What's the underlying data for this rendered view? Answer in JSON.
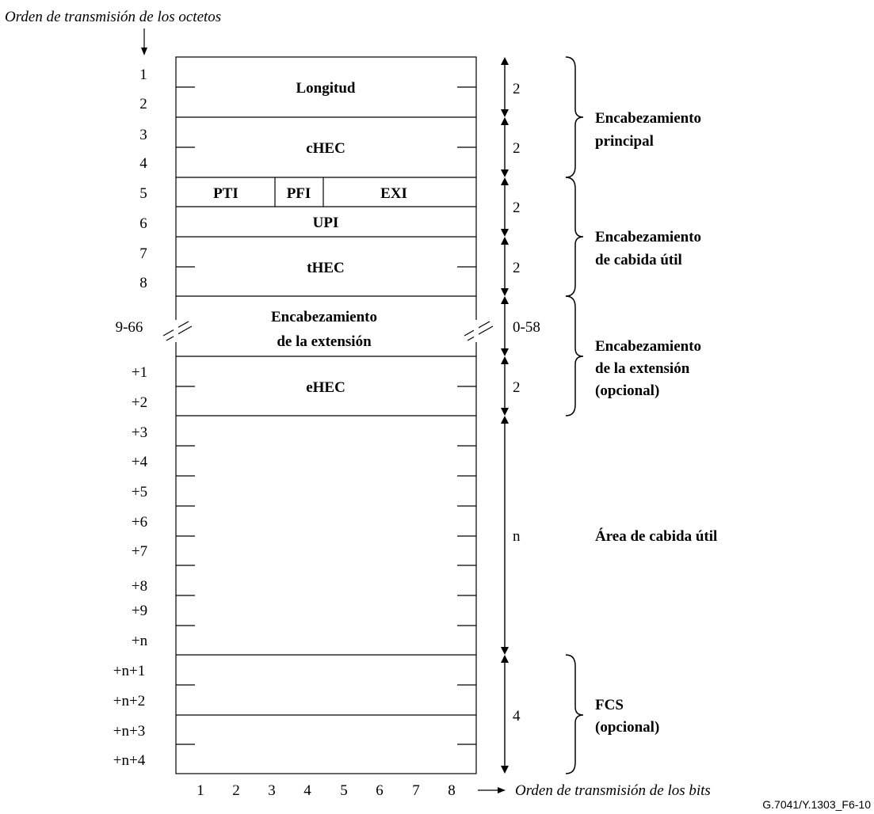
{
  "byte_order_label": "Orden de transmisión de los octetos",
  "bit_order_label": "Orden de transmisión de los bits",
  "figure_id": "G.7041/Y.1303_F6-10",
  "row_labels": [
    "1",
    "2",
    "3",
    "4",
    "5",
    "6",
    "7",
    "8",
    "9-66",
    "+1",
    "+2",
    "+3",
    "+4",
    "+5",
    "+6",
    "+7",
    "+8",
    "+9",
    "+n",
    "+n+1",
    "+n+2",
    "+n+3",
    "+n+4"
  ],
  "fields": {
    "length": "Longitud",
    "chec": "cHEC",
    "pti": "PTI",
    "pfi": "PFI",
    "exi": "EXI",
    "upi": "UPI",
    "thec": "tHEC",
    "ext_line1": "Encabezamiento",
    "ext_line2": "de la extensión",
    "ehec": "eHEC"
  },
  "sizes": [
    "2",
    "2",
    "2",
    "2",
    "0-58",
    "2",
    "n",
    "4"
  ],
  "groups": {
    "core_line1": "Encabezamiento",
    "core_line2": "principal",
    "payload_header_line1": "Encabezamiento",
    "payload_header_line2": "de cabida útil",
    "extension_line1": "Encabezamiento",
    "extension_line2": "de la extensión",
    "extension_line3": "(opcional)",
    "payload_area": "Área de cabida útil",
    "fcs_line1": "FCS",
    "fcs_line2": "(opcional)"
  },
  "bit_numbers": [
    "1",
    "2",
    "3",
    "4",
    "5",
    "6",
    "7",
    "8"
  ]
}
